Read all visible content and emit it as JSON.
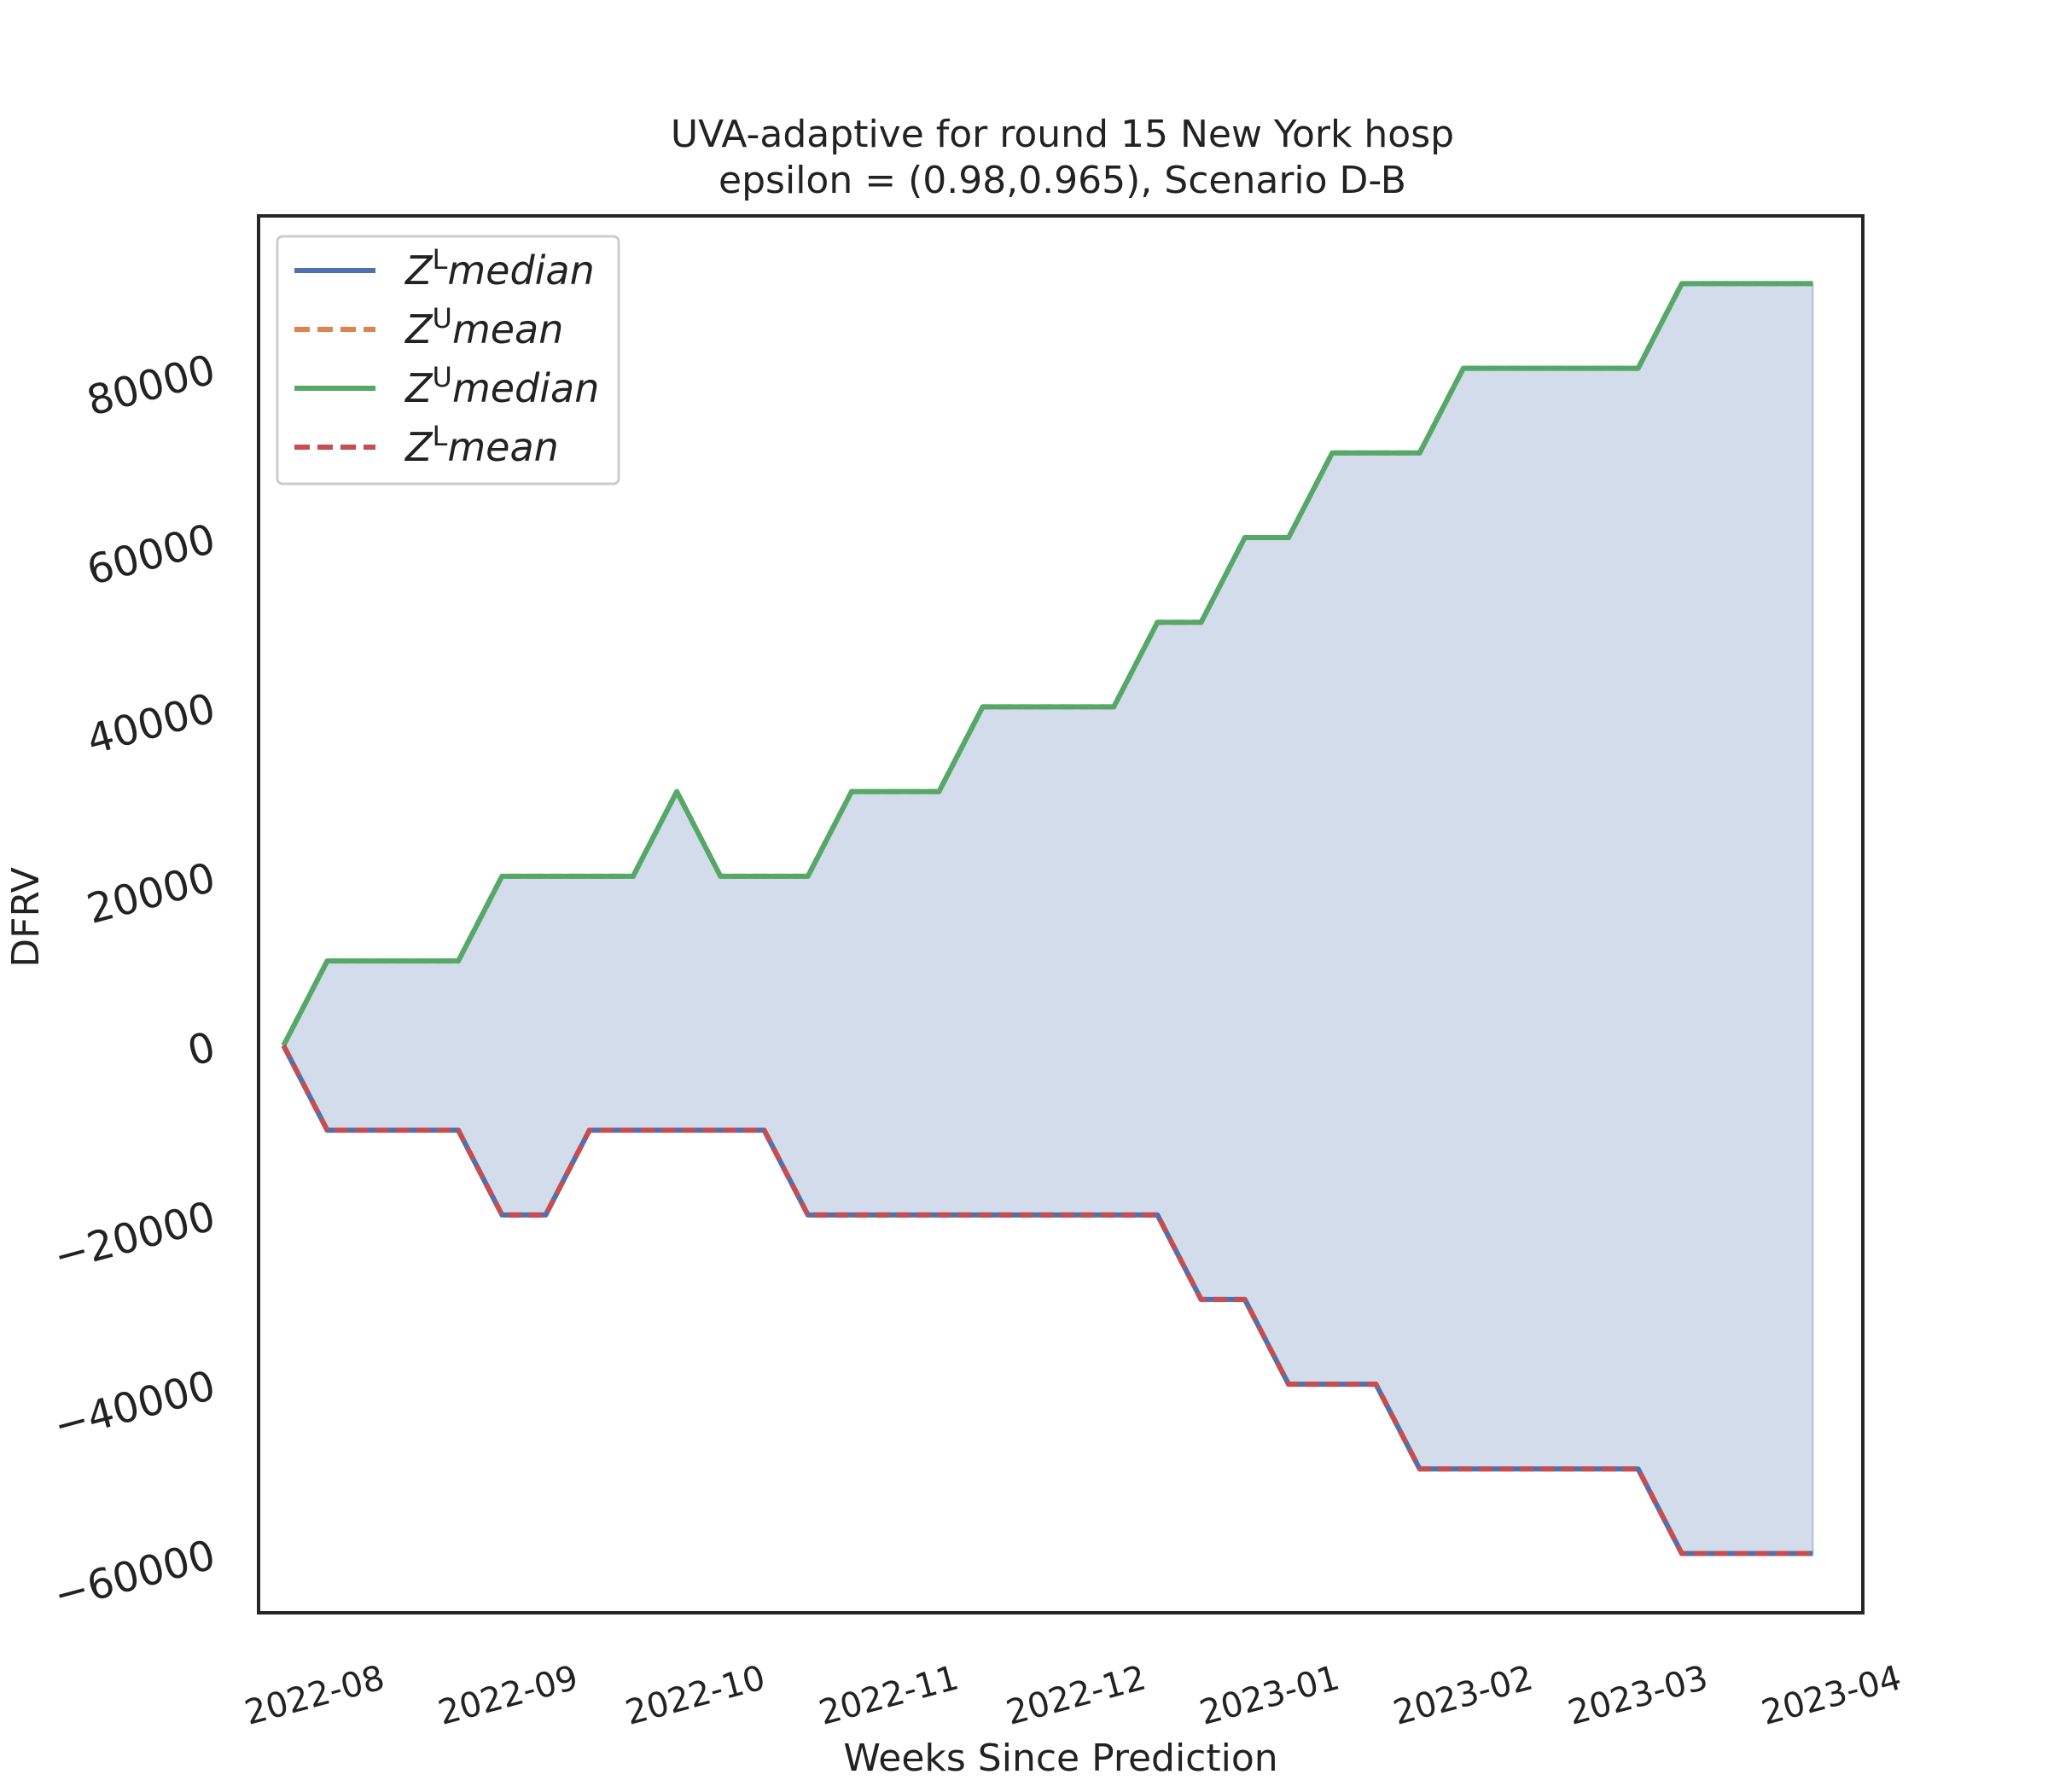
{
  "chart_data": {
    "type": "line",
    "title": "UVA-adaptive for round 15 New York  hosp",
    "subtitle": "epsilon = (0.98,0.965), Scenario D-B",
    "xlabel": "Weeks Since Prediction",
    "ylabel": "DFRV",
    "x_tick_labels": [
      "2022-08",
      "2022-09",
      "2022-10",
      "2022-11",
      "2022-12",
      "2023-01",
      "2023-02",
      "2023-03",
      "2023-04"
    ],
    "x_tick_dates": [
      "2022-08-01",
      "2022-09-01",
      "2022-10-01",
      "2022-11-01",
      "2022-12-01",
      "2023-01-01",
      "2023-02-01",
      "2023-03-01",
      "2023-04-01"
    ],
    "xlim": [
      "2022-07-20",
      "2023-04-03"
    ],
    "y_ticks": [
      -60000,
      -40000,
      -20000,
      0,
      20000,
      40000,
      60000,
      80000
    ],
    "y_tick_labels": [
      "−60000",
      "−40000",
      "−20000",
      "0",
      "20000",
      "40000",
      "60000",
      "80000"
    ],
    "ylim": [
      -67000,
      98000
    ],
    "grid": false,
    "legend_position": "top-left",
    "x": [
      "2022-07-24",
      "2022-07-31",
      "2022-08-07",
      "2022-08-14",
      "2022-08-21",
      "2022-08-28",
      "2022-09-04",
      "2022-09-11",
      "2022-09-18",
      "2022-09-25",
      "2022-10-02",
      "2022-10-09",
      "2022-10-16",
      "2022-10-23",
      "2022-10-30",
      "2022-11-06",
      "2022-11-13",
      "2022-11-20",
      "2022-11-27",
      "2022-12-04",
      "2022-12-11",
      "2022-12-18",
      "2022-12-25",
      "2023-01-01",
      "2023-01-08",
      "2023-01-15",
      "2023-01-22",
      "2023-01-29",
      "2023-02-05",
      "2023-02-12",
      "2023-02-19",
      "2023-02-26",
      "2023-03-05",
      "2023-03-12",
      "2023-03-19",
      "2023-03-26"
    ],
    "series": [
      {
        "name": "Z^L median",
        "legend_label": "median",
        "legend_sup": "L",
        "color": "#4c72b0",
        "style": "solid",
        "values": [
          0,
          -10000,
          -10000,
          -10000,
          -10000,
          -20000,
          -20000,
          -10000,
          -10000,
          -10000,
          -10000,
          -10000,
          -20000,
          -20000,
          -20000,
          -20000,
          -20000,
          -20000,
          -20000,
          -20000,
          -20000,
          -30000,
          -30000,
          -40000,
          -40000,
          -40000,
          -50000,
          -50000,
          -50000,
          -50000,
          -50000,
          -50000,
          -60000,
          -60000,
          -60000,
          -60000
        ]
      },
      {
        "name": "Z^U mean",
        "legend_label": "mean",
        "legend_sup": "U",
        "color": "#dd8452",
        "style": "dashed",
        "values": [
          0,
          10000,
          10000,
          10000,
          10000,
          20000,
          20000,
          20000,
          20000,
          30000,
          20000,
          20000,
          20000,
          30000,
          30000,
          30000,
          40000,
          40000,
          40000,
          40000,
          50000,
          50000,
          60000,
          60000,
          70000,
          70000,
          70000,
          80000,
          80000,
          80000,
          80000,
          80000,
          90000,
          90000,
          90000,
          90000
        ]
      },
      {
        "name": "Z^U median",
        "legend_label": "median",
        "legend_sup": "U",
        "color": "#55a868",
        "style": "solid",
        "values": [
          0,
          10000,
          10000,
          10000,
          10000,
          20000,
          20000,
          20000,
          20000,
          30000,
          20000,
          20000,
          20000,
          30000,
          30000,
          30000,
          40000,
          40000,
          40000,
          40000,
          50000,
          50000,
          60000,
          60000,
          70000,
          70000,
          70000,
          80000,
          80000,
          80000,
          80000,
          80000,
          90000,
          90000,
          90000,
          90000
        ]
      },
      {
        "name": "Z^L mean",
        "legend_label": "mean",
        "legend_sup": "L",
        "color": "#c44e52",
        "style": "dashed",
        "values": [
          0,
          -10000,
          -10000,
          -10000,
          -10000,
          -20000,
          -20000,
          -10000,
          -10000,
          -10000,
          -10000,
          -10000,
          -20000,
          -20000,
          -20000,
          -20000,
          -20000,
          -20000,
          -20000,
          -20000,
          -20000,
          -30000,
          -30000,
          -40000,
          -40000,
          -40000,
          -50000,
          -50000,
          -50000,
          -50000,
          -50000,
          -50000,
          -60000,
          -60000,
          -60000,
          -60000
        ]
      }
    ],
    "fill_between": {
      "lower": "Z^L median",
      "upper": "Z^U median",
      "color": "#4c72b0",
      "opacity": 0.25
    }
  }
}
